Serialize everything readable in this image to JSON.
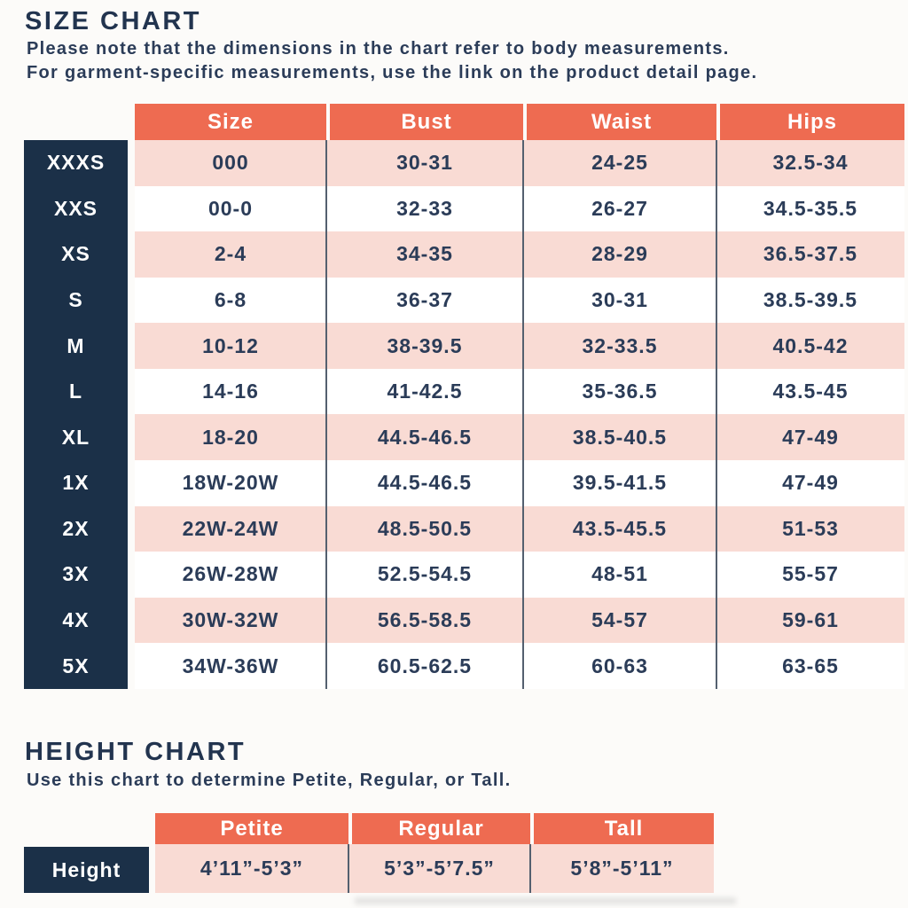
{
  "colors": {
    "header_orange": "#ee6b51",
    "row_pink": "#f9dbd4",
    "label_navy": "#1b3048",
    "text_navy": "#2b3c58",
    "divider_gray": "#54606f"
  },
  "size_chart": {
    "title": "SIZE CHART",
    "note_line1": "Please note that the dimensions in the chart refer to body measurements.",
    "note_line2": "For garment-specific measurements, use the link on the product detail page.",
    "columns": [
      "Size",
      "Bust",
      "Waist",
      "Hips"
    ],
    "rows": [
      {
        "label": "XXXS",
        "size": "000",
        "bust": "30-31",
        "waist": "24-25",
        "hips": "32.5-34"
      },
      {
        "label": "XXS",
        "size": "00-0",
        "bust": "32-33",
        "waist": "26-27",
        "hips": "34.5-35.5"
      },
      {
        "label": "XS",
        "size": "2-4",
        "bust": "34-35",
        "waist": "28-29",
        "hips": "36.5-37.5"
      },
      {
        "label": "S",
        "size": "6-8",
        "bust": "36-37",
        "waist": "30-31",
        "hips": "38.5-39.5"
      },
      {
        "label": "M",
        "size": "10-12",
        "bust": "38-39.5",
        "waist": "32-33.5",
        "hips": "40.5-42"
      },
      {
        "label": "L",
        "size": "14-16",
        "bust": "41-42.5",
        "waist": "35-36.5",
        "hips": "43.5-45"
      },
      {
        "label": "XL",
        "size": "18-20",
        "bust": "44.5-46.5",
        "waist": "38.5-40.5",
        "hips": "47-49"
      },
      {
        "label": "1X",
        "size": "18W-20W",
        "bust": "44.5-46.5",
        "waist": "39.5-41.5",
        "hips": "47-49"
      },
      {
        "label": "2X",
        "size": "22W-24W",
        "bust": "48.5-50.5",
        "waist": "43.5-45.5",
        "hips": "51-53"
      },
      {
        "label": "3X",
        "size": "26W-28W",
        "bust": "52.5-54.5",
        "waist": "48-51",
        "hips": "55-57"
      },
      {
        "label": "4X",
        "size": "30W-32W",
        "bust": "56.5-58.5",
        "waist": "54-57",
        "hips": "59-61"
      },
      {
        "label": "5X",
        "size": "34W-36W",
        "bust": "60.5-62.5",
        "waist": "60-63",
        "hips": "63-65"
      }
    ]
  },
  "height_chart": {
    "title": "HEIGHT CHART",
    "note": "Use this chart to determine Petite, Regular, or Tall.",
    "columns": [
      "Petite",
      "Regular",
      "Tall"
    ],
    "row_label": "Height",
    "values": [
      "4’11”-5’3”",
      "5’3”-5’7.5”",
      "5’8”-5’11”"
    ]
  },
  "chart_data": [
    {
      "type": "table",
      "title": "SIZE CHART",
      "columns": [
        "",
        "Size",
        "Bust",
        "Waist",
        "Hips"
      ],
      "rows": [
        [
          "XXXS",
          "000",
          "30-31",
          "24-25",
          "32.5-34"
        ],
        [
          "XXS",
          "00-0",
          "32-33",
          "26-27",
          "34.5-35.5"
        ],
        [
          "XS",
          "2-4",
          "34-35",
          "28-29",
          "36.5-37.5"
        ],
        [
          "S",
          "6-8",
          "36-37",
          "30-31",
          "38.5-39.5"
        ],
        [
          "M",
          "10-12",
          "38-39.5",
          "32-33.5",
          "40.5-42"
        ],
        [
          "L",
          "14-16",
          "41-42.5",
          "35-36.5",
          "43.5-45"
        ],
        [
          "XL",
          "18-20",
          "44.5-46.5",
          "38.5-40.5",
          "47-49"
        ],
        [
          "1X",
          "18W-20W",
          "44.5-46.5",
          "39.5-41.5",
          "47-49"
        ],
        [
          "2X",
          "22W-24W",
          "48.5-50.5",
          "43.5-45.5",
          "51-53"
        ],
        [
          "3X",
          "26W-28W",
          "52.5-54.5",
          "48-51",
          "55-57"
        ],
        [
          "4X",
          "30W-32W",
          "56.5-58.5",
          "54-57",
          "59-61"
        ],
        [
          "5X",
          "34W-36W",
          "60.5-62.5",
          "60-63",
          "63-65"
        ]
      ]
    },
    {
      "type": "table",
      "title": "HEIGHT CHART",
      "columns": [
        "",
        "Petite",
        "Regular",
        "Tall"
      ],
      "rows": [
        [
          "Height",
          "4’11”-5’3”",
          "5’3”-5’7.5”",
          "5’8”-5’11”"
        ]
      ]
    }
  ]
}
